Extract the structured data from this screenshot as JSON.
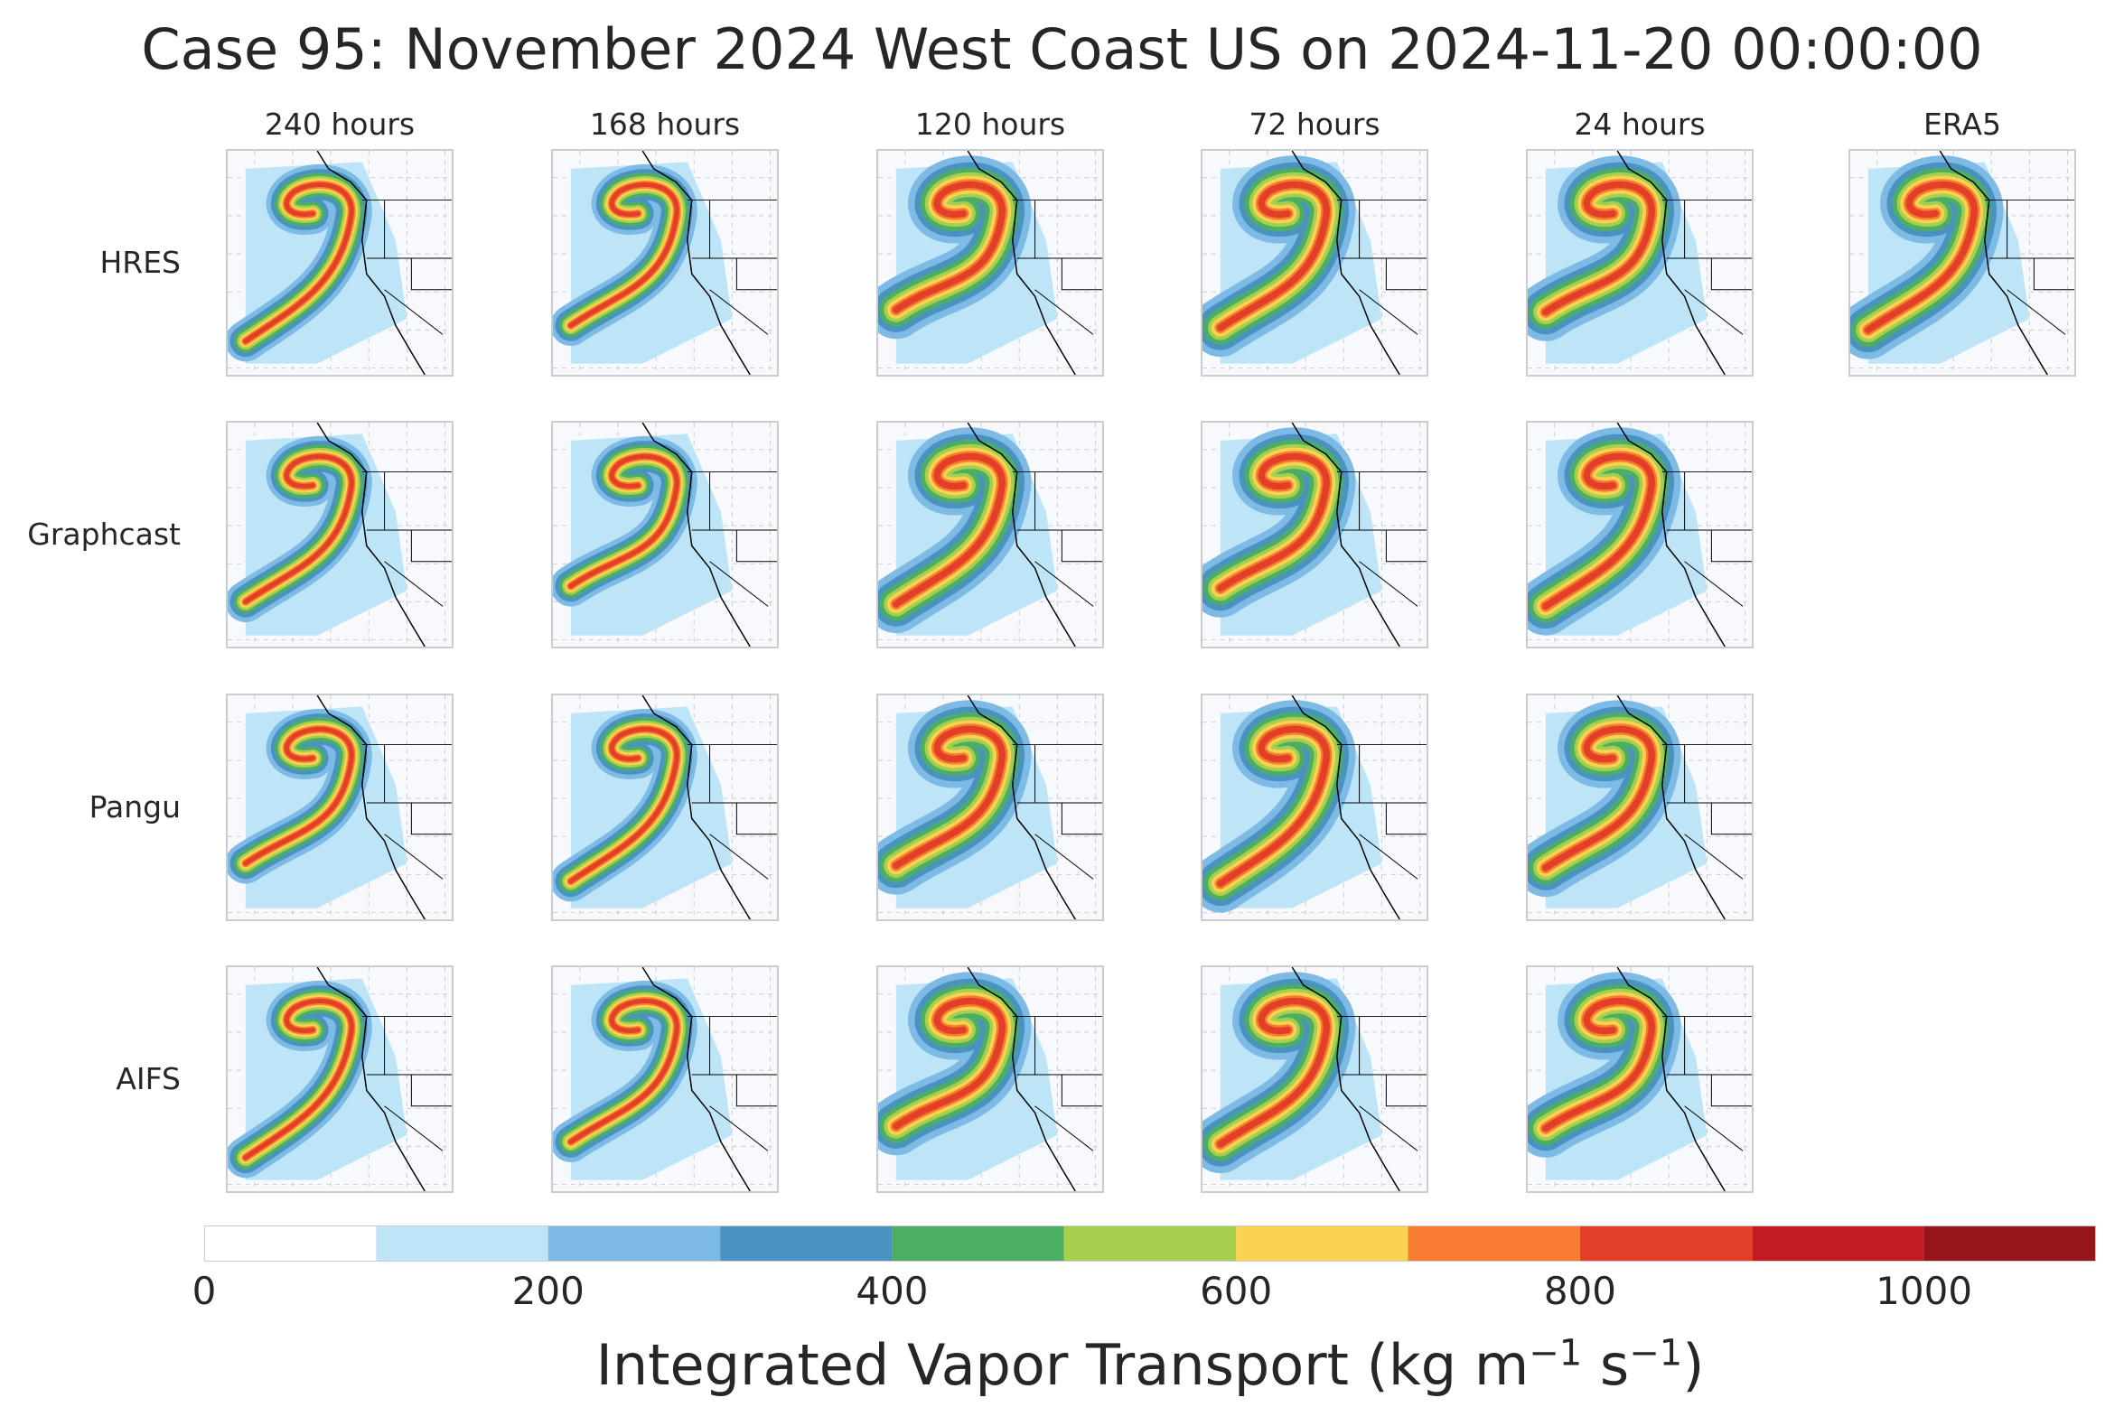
{
  "title": "Case 95: November 2024 West Coast US on 2024-11-20 00:00:00",
  "columns": [
    "240 hours",
    "168 hours",
    "120 hours",
    "72 hours",
    "24 hours",
    "ERA5"
  ],
  "rows": [
    "HRES",
    "Graphcast",
    "Pangu",
    "AIFS"
  ],
  "panels_present": {
    "HRES": [
      "240 hours",
      "168 hours",
      "120 hours",
      "72 hours",
      "24 hours",
      "ERA5"
    ],
    "Graphcast": [
      "240 hours",
      "168 hours",
      "120 hours",
      "72 hours",
      "24 hours"
    ],
    "Pangu": [
      "240 hours",
      "168 hours",
      "120 hours",
      "72 hours",
      "24 hours"
    ],
    "AIFS": [
      "240 hours",
      "168 hours",
      "120 hours",
      "72 hours",
      "24 hours"
    ]
  },
  "chart_data": {
    "type": "heatmap",
    "title": "Case 95: November 2024 West Coast US on 2024-11-20 00:00:00",
    "colorbar": {
      "label_main": "Integrated Vapor Transport (kg m",
      "label_exp1": "−1",
      "label_mid": " s",
      "label_exp2": "−1",
      "label_end": ")",
      "range": [
        0,
        1100
      ],
      "boundaries": [
        0,
        100,
        200,
        300,
        400,
        500,
        600,
        700,
        800,
        900,
        1000,
        1100
      ],
      "colors": [
        "#ffffff",
        "#bde5f7",
        "#7dbbe6",
        "#4a93c1",
        "#4cae62",
        "#a7cf4f",
        "#f9d251",
        "#f67d2f",
        "#e33e27",
        "#c11b24",
        "#94161b"
      ],
      "ticks": [
        "0",
        "200",
        "400",
        "600",
        "800",
        "1000"
      ],
      "tick_values": [
        0,
        200,
        400,
        600,
        800,
        1000
      ]
    },
    "contour_level": 250,
    "region": "West Coast US"
  }
}
